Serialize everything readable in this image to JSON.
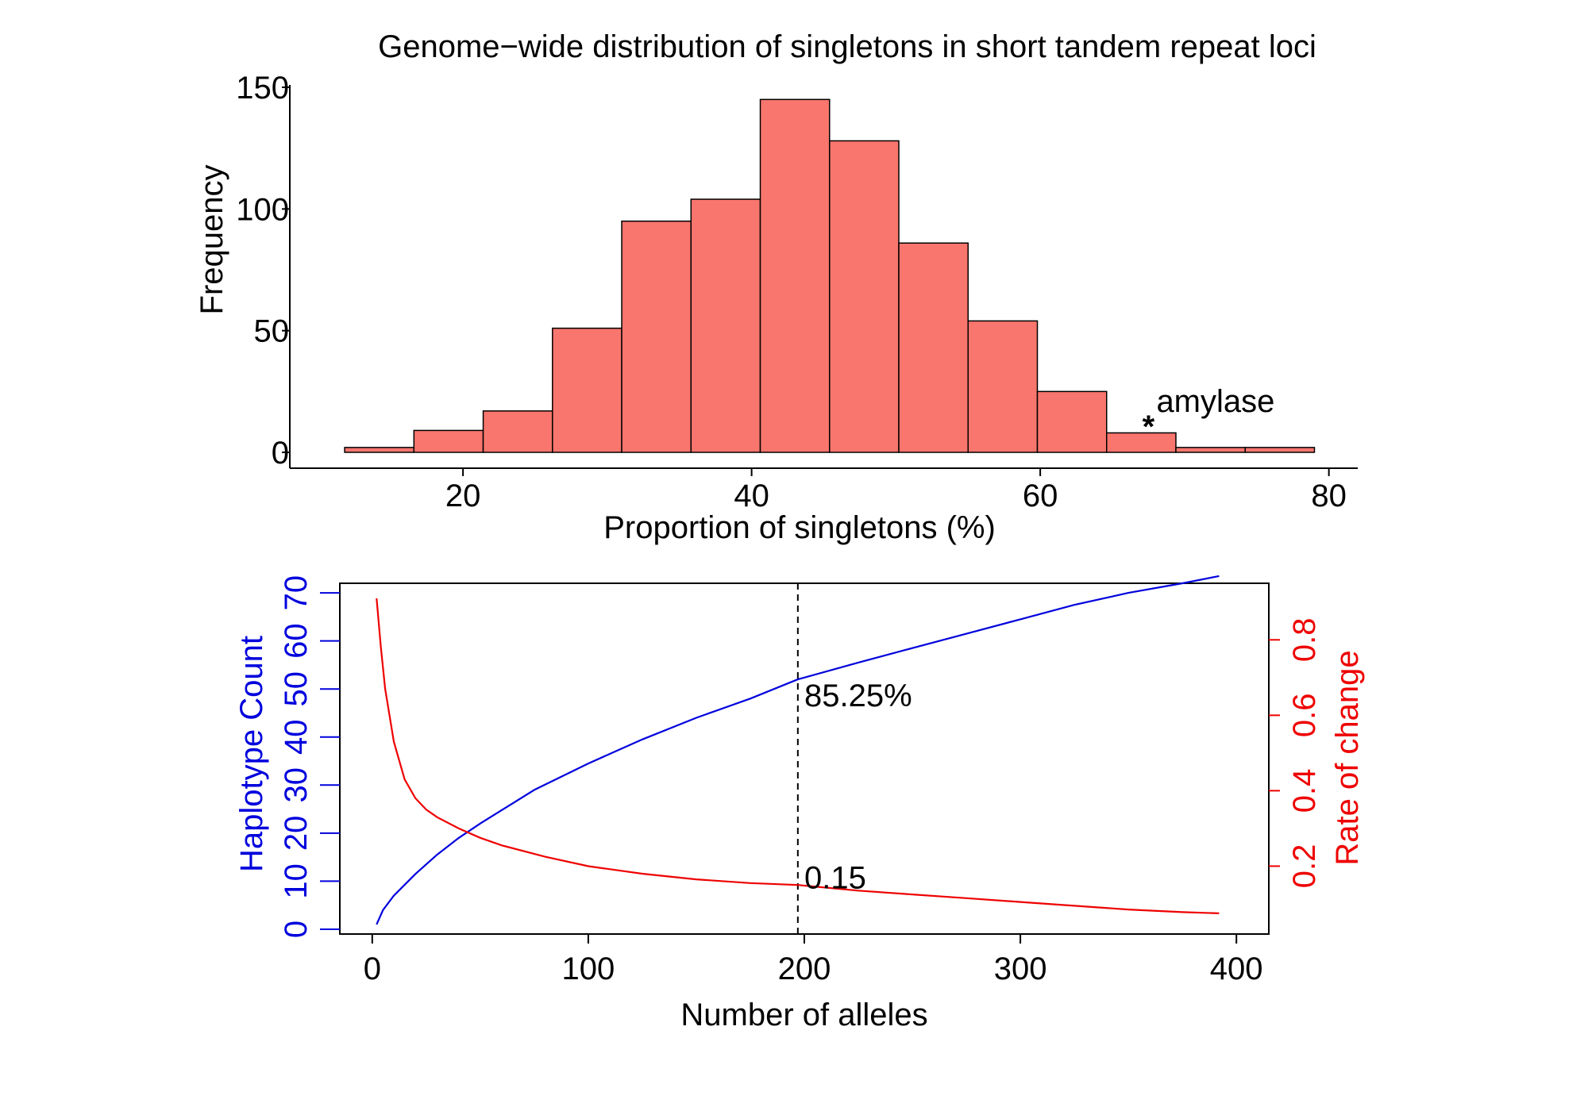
{
  "colors": {
    "bar_fill": "#F8766D",
    "bar_stroke": "#000000",
    "haplotype": "#0000DD",
    "rate": "#EE0000",
    "axis": "#000000"
  },
  "chart_data": [
    {
      "type": "bar",
      "title": "Genome−wide distribution of singletons in short tandem repeat loci",
      "xlabel": "Proportion of singletons (%)",
      "ylabel": "Frequency",
      "xlim": [
        8,
        82
      ],
      "ylim": [
        0,
        150
      ],
      "xticks": [
        20,
        40,
        60,
        80
      ],
      "yticks": [
        0,
        50,
        100,
        150
      ],
      "bin_edges": [
        11.8,
        16.6,
        21.4,
        26.2,
        31.0,
        35.8,
        40.6,
        45.4,
        50.2,
        55.0,
        59.8,
        64.6,
        69.4,
        74.2,
        79.0
      ],
      "values": [
        2,
        9,
        17,
        51,
        95,
        104,
        145,
        128,
        86,
        54,
        25,
        8,
        2,
        2
      ],
      "annotation": {
        "text": "amylase",
        "marker": "*",
        "x": 67.5,
        "y": 14
      }
    },
    {
      "type": "line",
      "xlabel": "Number of alleles",
      "ylabel_left": "Haplotype Count",
      "ylabel_right": "Rate of change",
      "xlim": [
        -15,
        415
      ],
      "xticks": [
        0,
        100,
        200,
        300,
        400
      ],
      "ylim_left": [
        -1,
        72
      ],
      "yticks_left": [
        0,
        10,
        20,
        30,
        40,
        50,
        60,
        70
      ],
      "ylim_right": [
        0.02,
        0.95
      ],
      "yticks_right": [
        0.2,
        0.4,
        0.6,
        0.8
      ],
      "series": [
        {
          "name": "Haplotype Count",
          "axis": "left",
          "x": [
            2,
            5,
            10,
            20,
            30,
            40,
            50,
            75,
            100,
            125,
            150,
            175,
            197,
            225,
            250,
            275,
            300,
            325,
            350,
            375,
            392
          ],
          "values": [
            1,
            4,
            7,
            11.5,
            15.5,
            19,
            22,
            29,
            34.5,
            39.5,
            44,
            48,
            52,
            55.5,
            58.5,
            61.5,
            64.5,
            67.5,
            70,
            72,
            73.5
          ]
        },
        {
          "name": "Rate of change",
          "axis": "right",
          "x": [
            2,
            4,
            6,
            10,
            15,
            20,
            25,
            30,
            40,
            50,
            60,
            80,
            100,
            125,
            150,
            175,
            197,
            225,
            250,
            275,
            300,
            325,
            350,
            375,
            392
          ],
          "values": [
            0.91,
            0.78,
            0.67,
            0.53,
            0.43,
            0.38,
            0.35,
            0.33,
            0.3,
            0.275,
            0.255,
            0.225,
            0.2,
            0.18,
            0.165,
            0.155,
            0.15,
            0.135,
            0.125,
            0.115,
            0.105,
            0.095,
            0.085,
            0.078,
            0.075
          ]
        }
      ],
      "vline_x": 197,
      "annotations": [
        {
          "text": "85.25%",
          "x": 200,
          "y": 50,
          "axis": "left"
        },
        {
          "text": "0.15",
          "x": 200,
          "y": 0.17,
          "axis": "right"
        }
      ]
    }
  ]
}
